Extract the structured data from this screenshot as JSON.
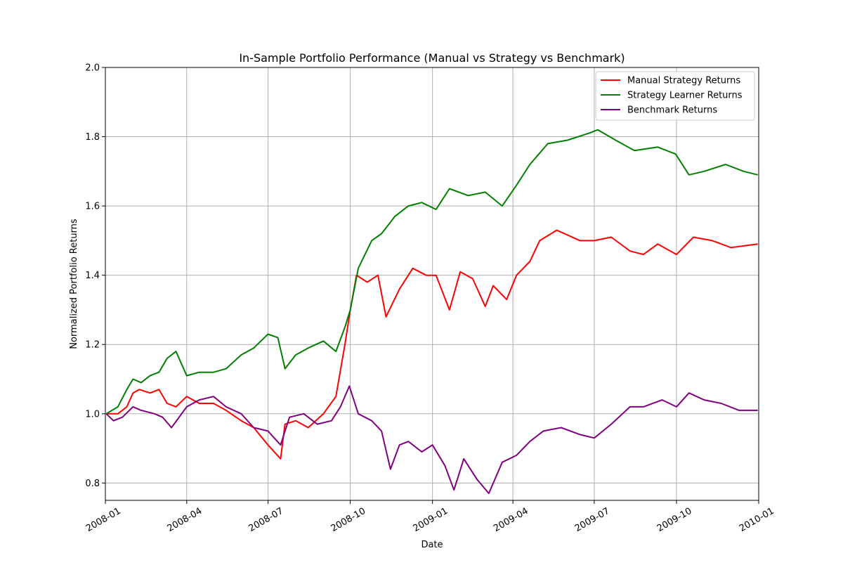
{
  "chart_data": {
    "type": "line",
    "title": "In-Sample Portfolio Performance (Manual vs Strategy vs Benchmark)",
    "xlabel": "Date",
    "ylabel": "Normalized Portfolio Returns",
    "xlim": [
      "2008-01-01",
      "2010-01-01"
    ],
    "ylim": [
      0.75,
      2.0
    ],
    "x_ticks": [
      "2008-01",
      "2008-04",
      "2008-07",
      "2008-10",
      "2009-01",
      "2009-04",
      "2009-07",
      "2009-10",
      "2010-01"
    ],
    "y_ticks": [
      "0.8",
      "1.0",
      "1.2",
      "1.4",
      "1.6",
      "1.8",
      "2.0"
    ],
    "grid": true,
    "legend_position": "top-right",
    "series": [
      {
        "name": "Manual Strategy Returns",
        "color": "#ff0000",
        "points": [
          [
            "2008-01-02",
            1.0
          ],
          [
            "2008-01-15",
            1.0
          ],
          [
            "2008-01-25",
            1.02
          ],
          [
            "2008-02-01",
            1.06
          ],
          [
            "2008-02-08",
            1.07
          ],
          [
            "2008-02-20",
            1.06
          ],
          [
            "2008-03-01",
            1.07
          ],
          [
            "2008-03-10",
            1.03
          ],
          [
            "2008-03-20",
            1.02
          ],
          [
            "2008-04-01",
            1.05
          ],
          [
            "2008-04-15",
            1.03
          ],
          [
            "2008-05-01",
            1.03
          ],
          [
            "2008-05-15",
            1.01
          ],
          [
            "2008-06-01",
            0.98
          ],
          [
            "2008-06-15",
            0.96
          ],
          [
            "2008-07-01",
            0.91
          ],
          [
            "2008-07-15",
            0.87
          ],
          [
            "2008-07-20",
            0.97
          ],
          [
            "2008-08-01",
            0.98
          ],
          [
            "2008-08-15",
            0.96
          ],
          [
            "2008-09-01",
            1.0
          ],
          [
            "2008-09-15",
            1.05
          ],
          [
            "2008-09-25",
            1.2
          ],
          [
            "2008-10-01",
            1.3
          ],
          [
            "2008-10-08",
            1.4
          ],
          [
            "2008-10-20",
            1.38
          ],
          [
            "2008-11-01",
            1.4
          ],
          [
            "2008-11-10",
            1.28
          ],
          [
            "2008-11-25",
            1.36
          ],
          [
            "2008-12-10",
            1.42
          ],
          [
            "2008-12-25",
            1.4
          ],
          [
            "2009-01-05",
            1.4
          ],
          [
            "2009-01-20",
            1.3
          ],
          [
            "2009-02-01",
            1.41
          ],
          [
            "2009-02-15",
            1.39
          ],
          [
            "2009-03-01",
            1.31
          ],
          [
            "2009-03-10",
            1.37
          ],
          [
            "2009-03-25",
            1.33
          ],
          [
            "2009-04-05",
            1.4
          ],
          [
            "2009-04-20",
            1.44
          ],
          [
            "2009-05-01",
            1.5
          ],
          [
            "2009-05-20",
            1.53
          ],
          [
            "2009-06-15",
            1.5
          ],
          [
            "2009-07-01",
            1.5
          ],
          [
            "2009-07-20",
            1.51
          ],
          [
            "2009-08-10",
            1.47
          ],
          [
            "2009-08-25",
            1.46
          ],
          [
            "2009-09-10",
            1.49
          ],
          [
            "2009-10-01",
            1.46
          ],
          [
            "2009-10-20",
            1.51
          ],
          [
            "2009-11-10",
            1.5
          ],
          [
            "2009-12-01",
            1.48
          ],
          [
            "2009-12-31",
            1.49
          ]
        ]
      },
      {
        "name": "Strategy Learner Returns",
        "color": "#008000",
        "points": [
          [
            "2008-01-02",
            1.0
          ],
          [
            "2008-01-15",
            1.02
          ],
          [
            "2008-01-25",
            1.07
          ],
          [
            "2008-02-01",
            1.1
          ],
          [
            "2008-02-10",
            1.09
          ],
          [
            "2008-02-20",
            1.11
          ],
          [
            "2008-03-01",
            1.12
          ],
          [
            "2008-03-10",
            1.16
          ],
          [
            "2008-03-20",
            1.18
          ],
          [
            "2008-04-01",
            1.11
          ],
          [
            "2008-04-15",
            1.12
          ],
          [
            "2008-05-01",
            1.12
          ],
          [
            "2008-05-15",
            1.13
          ],
          [
            "2008-06-01",
            1.17
          ],
          [
            "2008-06-15",
            1.19
          ],
          [
            "2008-07-01",
            1.23
          ],
          [
            "2008-07-12",
            1.22
          ],
          [
            "2008-07-20",
            1.13
          ],
          [
            "2008-08-01",
            1.17
          ],
          [
            "2008-08-15",
            1.19
          ],
          [
            "2008-09-01",
            1.21
          ],
          [
            "2008-09-15",
            1.18
          ],
          [
            "2008-09-25",
            1.25
          ],
          [
            "2008-10-01",
            1.3
          ],
          [
            "2008-10-10",
            1.42
          ],
          [
            "2008-10-25",
            1.5
          ],
          [
            "2008-11-05",
            1.52
          ],
          [
            "2008-11-20",
            1.57
          ],
          [
            "2008-12-05",
            1.6
          ],
          [
            "2008-12-20",
            1.61
          ],
          [
            "2009-01-05",
            1.59
          ],
          [
            "2009-01-20",
            1.65
          ],
          [
            "2009-02-10",
            1.63
          ],
          [
            "2009-03-01",
            1.64
          ],
          [
            "2009-03-20",
            1.6
          ],
          [
            "2009-04-05",
            1.66
          ],
          [
            "2009-04-20",
            1.72
          ],
          [
            "2009-05-10",
            1.78
          ],
          [
            "2009-06-01",
            1.79
          ],
          [
            "2009-06-25",
            1.81
          ],
          [
            "2009-07-05",
            1.82
          ],
          [
            "2009-07-25",
            1.79
          ],
          [
            "2009-08-15",
            1.76
          ],
          [
            "2009-09-10",
            1.77
          ],
          [
            "2009-09-30",
            1.75
          ],
          [
            "2009-10-15",
            1.69
          ],
          [
            "2009-11-01",
            1.7
          ],
          [
            "2009-11-25",
            1.72
          ],
          [
            "2009-12-15",
            1.7
          ],
          [
            "2009-12-31",
            1.69
          ]
        ]
      },
      {
        "name": "Benchmark Returns",
        "color": "#800080",
        "points": [
          [
            "2008-01-02",
            1.0
          ],
          [
            "2008-01-10",
            0.98
          ],
          [
            "2008-01-20",
            0.99
          ],
          [
            "2008-02-01",
            1.02
          ],
          [
            "2008-02-10",
            1.01
          ],
          [
            "2008-02-25",
            1.0
          ],
          [
            "2008-03-05",
            0.99
          ],
          [
            "2008-03-15",
            0.96
          ],
          [
            "2008-04-01",
            1.02
          ],
          [
            "2008-04-15",
            1.04
          ],
          [
            "2008-05-01",
            1.05
          ],
          [
            "2008-05-15",
            1.02
          ],
          [
            "2008-06-01",
            1.0
          ],
          [
            "2008-06-15",
            0.96
          ],
          [
            "2008-07-01",
            0.95
          ],
          [
            "2008-07-15",
            0.91
          ],
          [
            "2008-07-25",
            0.99
          ],
          [
            "2008-08-10",
            1.0
          ],
          [
            "2008-08-25",
            0.97
          ],
          [
            "2008-09-10",
            0.98
          ],
          [
            "2008-09-20",
            1.02
          ],
          [
            "2008-09-30",
            1.08
          ],
          [
            "2008-10-10",
            1.0
          ],
          [
            "2008-10-25",
            0.98
          ],
          [
            "2008-11-05",
            0.95
          ],
          [
            "2008-11-15",
            0.84
          ],
          [
            "2008-11-25",
            0.91
          ],
          [
            "2008-12-05",
            0.92
          ],
          [
            "2008-12-20",
            0.89
          ],
          [
            "2009-01-01",
            0.91
          ],
          [
            "2009-01-15",
            0.85
          ],
          [
            "2009-01-25",
            0.78
          ],
          [
            "2009-02-05",
            0.87
          ],
          [
            "2009-02-20",
            0.81
          ],
          [
            "2009-03-05",
            0.77
          ],
          [
            "2009-03-20",
            0.86
          ],
          [
            "2009-04-05",
            0.88
          ],
          [
            "2009-04-20",
            0.92
          ],
          [
            "2009-05-05",
            0.95
          ],
          [
            "2009-05-25",
            0.96
          ],
          [
            "2009-06-15",
            0.94
          ],
          [
            "2009-07-01",
            0.93
          ],
          [
            "2009-07-20",
            0.97
          ],
          [
            "2009-08-10",
            1.02
          ],
          [
            "2009-08-25",
            1.02
          ],
          [
            "2009-09-15",
            1.04
          ],
          [
            "2009-10-01",
            1.02
          ],
          [
            "2009-10-15",
            1.06
          ],
          [
            "2009-11-01",
            1.04
          ],
          [
            "2009-11-20",
            1.03
          ],
          [
            "2009-12-10",
            1.01
          ],
          [
            "2009-12-31",
            1.01
          ]
        ]
      }
    ]
  }
}
